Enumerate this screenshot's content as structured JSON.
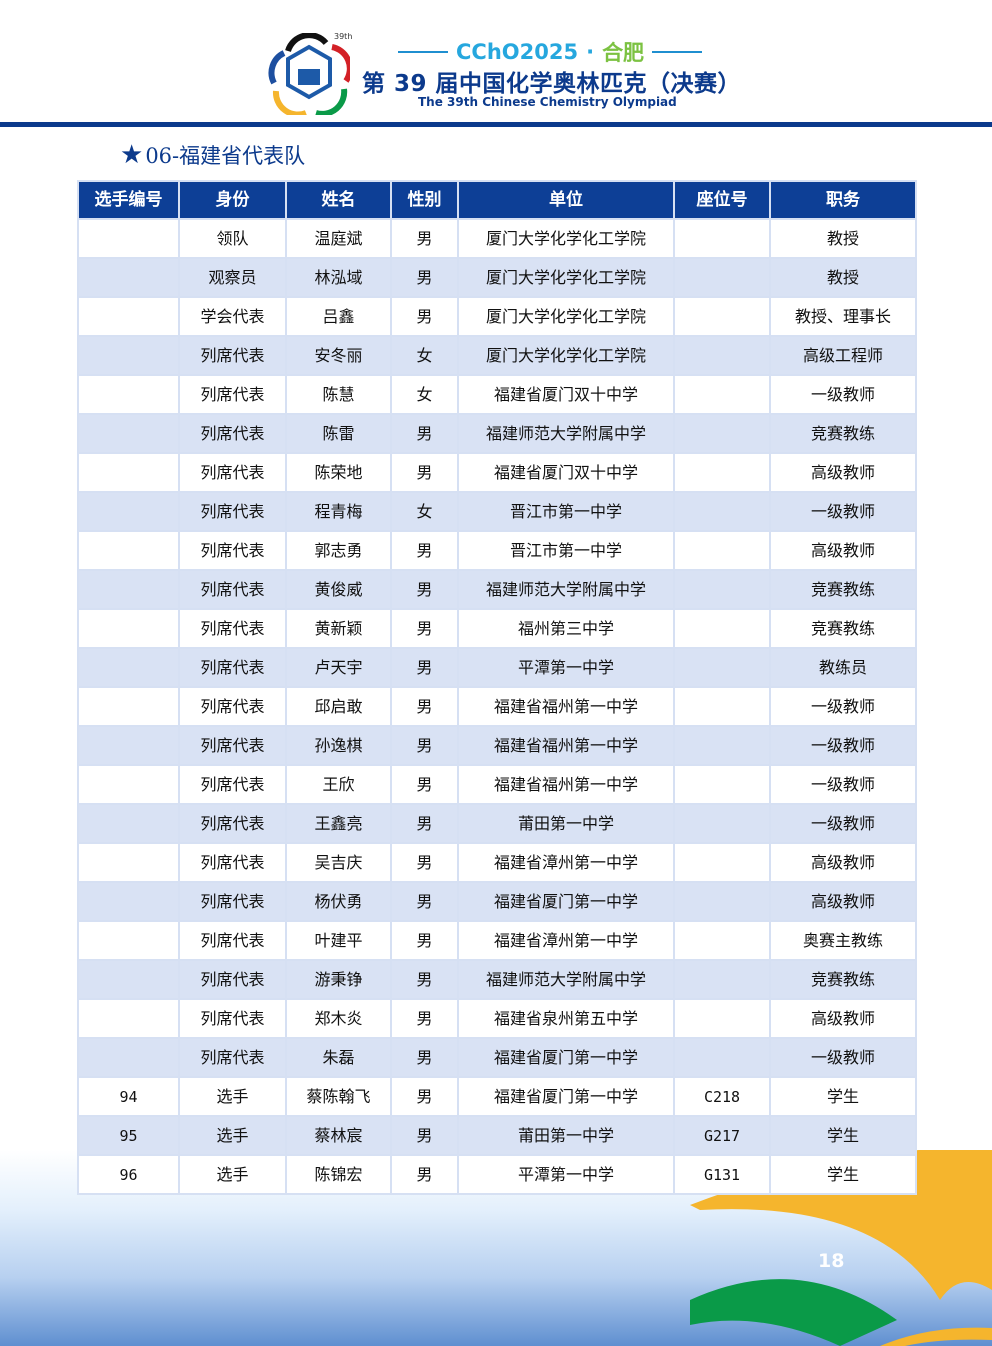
{
  "header": {
    "edition_mark": "39th",
    "event": "CChO2025",
    "sep": "·",
    "city": "合肥",
    "title_cn": "第 39 届中国化学奥林匹克（决赛）",
    "title_en": "The 39th Chinese Chemistry Olympiad"
  },
  "section": {
    "star_icon": "★",
    "title": "06-福建省代表队"
  },
  "table": {
    "columns": [
      "选手编号",
      "身份",
      "姓名",
      "性别",
      "单位",
      "座位号",
      "职务"
    ],
    "rows": [
      [
        "",
        "领队",
        "温庭斌",
        "男",
        "厦门大学化学化工学院",
        "",
        "教授"
      ],
      [
        "",
        "观察员",
        "林泓域",
        "男",
        "厦门大学化学化工学院",
        "",
        "教授"
      ],
      [
        "",
        "学会代表",
        "吕鑫",
        "男",
        "厦门大学化学化工学院",
        "",
        "教授、理事长"
      ],
      [
        "",
        "列席代表",
        "安冬丽",
        "女",
        "厦门大学化学化工学院",
        "",
        "高级工程师"
      ],
      [
        "",
        "列席代表",
        "陈慧",
        "女",
        "福建省厦门双十中学",
        "",
        "一级教师"
      ],
      [
        "",
        "列席代表",
        "陈雷",
        "男",
        "福建师范大学附属中学",
        "",
        "竞赛教练"
      ],
      [
        "",
        "列席代表",
        "陈荣地",
        "男",
        "福建省厦门双十中学",
        "",
        "高级教师"
      ],
      [
        "",
        "列席代表",
        "程青梅",
        "女",
        "晋江市第一中学",
        "",
        "一级教师"
      ],
      [
        "",
        "列席代表",
        "郭志勇",
        "男",
        "晋江市第一中学",
        "",
        "高级教师"
      ],
      [
        "",
        "列席代表",
        "黄俊威",
        "男",
        "福建师范大学附属中学",
        "",
        "竞赛教练"
      ],
      [
        "",
        "列席代表",
        "黄新颖",
        "男",
        "福州第三中学",
        "",
        "竞赛教练"
      ],
      [
        "",
        "列席代表",
        "卢天宇",
        "男",
        "平潭第一中学",
        "",
        "教练员"
      ],
      [
        "",
        "列席代表",
        "邱启敢",
        "男",
        "福建省福州第一中学",
        "",
        "一级教师"
      ],
      [
        "",
        "列席代表",
        "孙逸棋",
        "男",
        "福建省福州第一中学",
        "",
        "一级教师"
      ],
      [
        "",
        "列席代表",
        "王欣",
        "男",
        "福建省福州第一中学",
        "",
        "一级教师"
      ],
      [
        "",
        "列席代表",
        "王鑫亮",
        "男",
        "莆田第一中学",
        "",
        "一级教师"
      ],
      [
        "",
        "列席代表",
        "吴吉庆",
        "男",
        "福建省漳州第一中学",
        "",
        "高级教师"
      ],
      [
        "",
        "列席代表",
        "杨伏勇",
        "男",
        "福建省厦门第一中学",
        "",
        "高级教师"
      ],
      [
        "",
        "列席代表",
        "叶建平",
        "男",
        "福建省漳州第一中学",
        "",
        "奥赛主教练"
      ],
      [
        "",
        "列席代表",
        "游秉铮",
        "男",
        "福建师范大学附属中学",
        "",
        "竞赛教练"
      ],
      [
        "",
        "列席代表",
        "郑木炎",
        "男",
        "福建省泉州第五中学",
        "",
        "高级教师"
      ],
      [
        "",
        "列席代表",
        "朱磊",
        "男",
        "福建省厦门第一中学",
        "",
        "一级教师"
      ],
      [
        "94",
        "选手",
        "蔡陈翰飞",
        "男",
        "福建省厦门第一中学",
        "C218",
        "学生"
      ],
      [
        "95",
        "选手",
        "蔡林宸",
        "男",
        "莆田第一中学",
        "G217",
        "学生"
      ],
      [
        "96",
        "选手",
        "陈锦宏",
        "男",
        "平潭第一中学",
        "G131",
        "学生"
      ]
    ]
  },
  "footer": {
    "page_number": "18"
  },
  "colors": {
    "brand_blue": "#0b3a8c",
    "header_bg": "#0d3f96",
    "stripe": "#d9e2f4",
    "event_blue": "#26a7de",
    "city_green": "#7cc242"
  }
}
